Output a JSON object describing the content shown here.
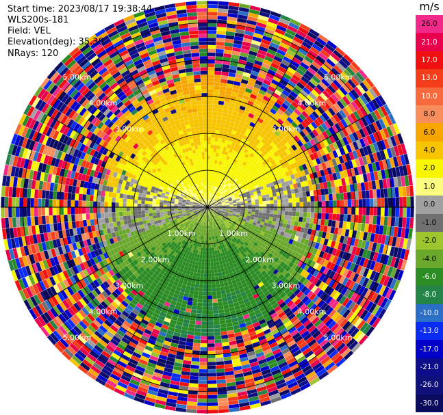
{
  "header": {
    "start_time": "Start time: 2023/08/17 19:38:44",
    "instrument": "WLS200s-181",
    "field": "Field: VEL",
    "elevation": "Elevation(deg): 35.30",
    "nrays": "NRays: 120"
  },
  "colorbar": {
    "unit": "m/s",
    "ticks": [
      "26.0",
      "21.0",
      "17.0",
      "13.0",
      "10.0",
      "8.0",
      "6.0",
      "4.0",
      "2.0",
      "1.0",
      "0.0",
      "-1.0",
      "-2.0",
      "-4.0",
      "-6.0",
      "-8.0",
      "-10.0",
      "-13.0",
      "-17.0",
      "-21.0",
      "-26.0",
      "-30.0"
    ],
    "colors": [
      "#f12a8a",
      "#e8004b",
      "#f01010",
      "#f23c1a",
      "#f56b3d",
      "#f88e5c",
      "#f7a600",
      "#f7c400",
      "#f7f600",
      "#fdfd80",
      "#a0a0a0",
      "#707070",
      "#9dc52e",
      "#6aa82c",
      "#2a8c22",
      "#248448",
      "#2a6ec6",
      "#0a2cf2",
      "#0000c8",
      "#0d0d8c",
      "#10107a",
      "#0a0a5e"
    ]
  },
  "chart_data": {
    "type": "heatmap",
    "subtype": "ppi-radial-velocity",
    "field": "VEL",
    "unit": "m/s",
    "nrays": 120,
    "elevation_deg": 35.3,
    "ring_labels": [
      "1.00km",
      "2.00km",
      "3.00km",
      "4.00km",
      "5.00km"
    ],
    "range_rings_km": [
      1,
      2,
      3,
      4,
      5
    ],
    "max_range_km": 5.6,
    "velocity_pattern": {
      "north_sector_mean": 1.8,
      "south_sector_mean": -4.5,
      "noise_beyond_km": 3.1
    },
    "colorbar_range": [
      -30.0,
      26.0
    ]
  }
}
